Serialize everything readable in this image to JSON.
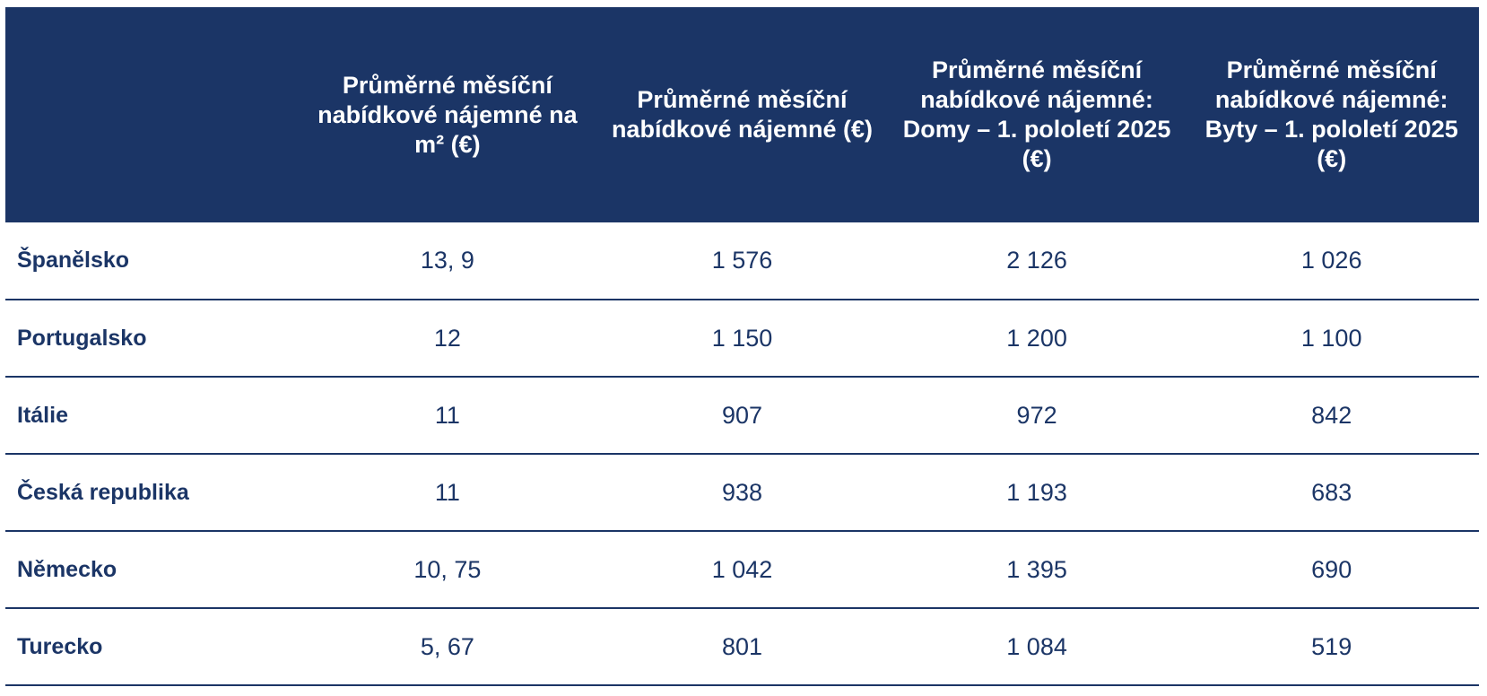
{
  "table": {
    "header": [
      "Průměrné měsíční nabídkové nájemné na m² (€)",
      "Průměrné měsíční nabídkové nájemné (€)",
      "Průměrné měsíční nabídkové nájemné: Domy – 1. pololetí 2025 (€)",
      "Průměrné měsíční nabídkové nájemné: Byty – 1. pololetí 2025 (€)"
    ],
    "rows": [
      [
        "Španělsko",
        "13, 9",
        "1 576",
        "2 126",
        "1 026"
      ],
      [
        "Portugalsko",
        "12",
        "1 150",
        "1 200",
        "1 100"
      ],
      [
        "Itálie",
        "11",
        "907",
        "972",
        "842"
      ],
      [
        "Česká republika",
        "11",
        "938",
        "1 193",
        "683"
      ],
      [
        "Německo",
        "10, 75",
        "1 042",
        "1 395",
        "690"
      ],
      [
        "Turecko",
        "5, 67",
        "801",
        "1 084",
        "519"
      ]
    ]
  }
}
